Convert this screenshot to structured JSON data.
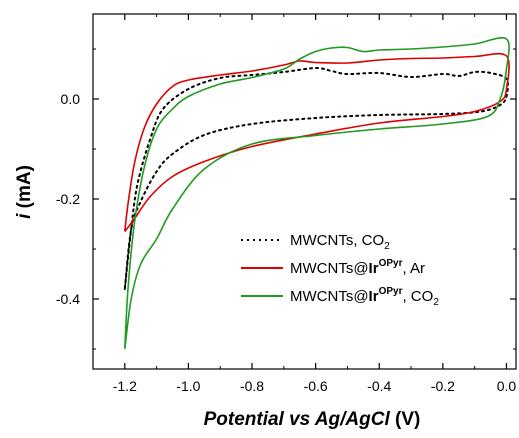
{
  "chart_data": {
    "type": "line",
    "title": "",
    "xlabel": {
      "main": "Potential vs Ag/AgCl",
      "unit": " (V)"
    },
    "ylabel": {
      "symbol": "i",
      "unit": " (mA)"
    },
    "xlim": [
      -1.3,
      0.03
    ],
    "ylim": [
      -0.54,
      0.17
    ],
    "x_ticks": [
      -1.2,
      -1.0,
      -0.8,
      -0.6,
      -0.4,
      -0.2,
      0.0
    ],
    "x_tick_labels": [
      "-1.2",
      "-1.0",
      "-0.8",
      "-0.6",
      "-0.4",
      "-0.2",
      "0.0"
    ],
    "y_ticks": [
      0.0,
      -0.2,
      -0.4
    ],
    "y_tick_labels": [
      "0.0",
      "-0.2",
      "-0.4"
    ],
    "grid": false,
    "legend_position": "lower-right",
    "series": [
      {
        "name": "MWCNTs, CO2",
        "legend": {
          "main": "MWCNTs, CO",
          "sub": "2"
        },
        "color": "#000000",
        "style": "dotted",
        "points": [
          [
            -1.2,
            -0.38
          ],
          [
            -1.18,
            -0.26
          ],
          [
            -1.16,
            -0.17
          ],
          [
            -1.12,
            -0.08
          ],
          [
            -1.08,
            -0.02
          ],
          [
            -1.0,
            0.02
          ],
          [
            -0.9,
            0.042
          ],
          [
            -0.8,
            0.048
          ],
          [
            -0.7,
            0.054
          ],
          [
            -0.6,
            0.062
          ],
          [
            -0.55,
            0.056
          ],
          [
            -0.5,
            0.05
          ],
          [
            -0.4,
            0.052
          ],
          [
            -0.3,
            0.044
          ],
          [
            -0.2,
            0.05
          ],
          [
            -0.15,
            0.046
          ],
          [
            -0.1,
            0.054
          ],
          [
            -0.05,
            0.052
          ],
          [
            0.0,
            0.04
          ],
          [
            0.0,
            0.005
          ],
          [
            -0.02,
            -0.012
          ],
          [
            -0.08,
            -0.025
          ],
          [
            -0.2,
            -0.03
          ],
          [
            -0.4,
            -0.032
          ],
          [
            -0.6,
            -0.038
          ],
          [
            -0.8,
            -0.05
          ],
          [
            -0.95,
            -0.072
          ],
          [
            -1.05,
            -0.11
          ],
          [
            -1.1,
            -0.145
          ],
          [
            -1.15,
            -0.205
          ],
          [
            -1.18,
            -0.26
          ],
          [
            -1.2,
            -0.38
          ]
        ]
      },
      {
        "name": "MWCNTs@IrOPyr, Ar",
        "legend": {
          "main": "MWCNTs@",
          "bold": "Ir",
          "sup": "OPyr",
          "tail": ", Ar"
        },
        "color": "#dd0000",
        "style": "solid",
        "points": [
          [
            -1.2,
            -0.265
          ],
          [
            -1.19,
            -0.21
          ],
          [
            -1.17,
            -0.13
          ],
          [
            -1.14,
            -0.06
          ],
          [
            -1.1,
            -0.01
          ],
          [
            -1.05,
            0.025
          ],
          [
            -1.0,
            0.038
          ],
          [
            -0.9,
            0.048
          ],
          [
            -0.8,
            0.056
          ],
          [
            -0.7,
            0.068
          ],
          [
            -0.65,
            0.076
          ],
          [
            -0.6,
            0.073
          ],
          [
            -0.5,
            0.072
          ],
          [
            -0.4,
            0.078
          ],
          [
            -0.3,
            0.081
          ],
          [
            -0.2,
            0.082
          ],
          [
            -0.1,
            0.085
          ],
          [
            0.0,
            0.086
          ],
          [
            0.0,
            0.02
          ],
          [
            -0.02,
            -0.005
          ],
          [
            -0.1,
            -0.025
          ],
          [
            -0.2,
            -0.035
          ],
          [
            -0.4,
            -0.048
          ],
          [
            -0.6,
            -0.07
          ],
          [
            -0.8,
            -0.095
          ],
          [
            -0.95,
            -0.125
          ],
          [
            -1.05,
            -0.155
          ],
          [
            -1.12,
            -0.195
          ],
          [
            -1.17,
            -0.24
          ],
          [
            -1.2,
            -0.265
          ]
        ]
      },
      {
        "name": "MWCNTs@IrOPyr, CO2",
        "legend": {
          "main": "MWCNTs@",
          "bold": "Ir",
          "sup": "OPyr",
          "tail": ", CO",
          "sub": "2"
        },
        "color": "#229922",
        "style": "solid",
        "points": [
          [
            -1.2,
            -0.5
          ],
          [
            -1.19,
            -0.38
          ],
          [
            -1.17,
            -0.25
          ],
          [
            -1.14,
            -0.14
          ],
          [
            -1.1,
            -0.06
          ],
          [
            -1.05,
            -0.02
          ],
          [
            -1.0,
            0.005
          ],
          [
            -0.9,
            0.03
          ],
          [
            -0.8,
            0.043
          ],
          [
            -0.7,
            0.06
          ],
          [
            -0.65,
            0.08
          ],
          [
            -0.6,
            0.095
          ],
          [
            -0.55,
            0.102
          ],
          [
            -0.5,
            0.103
          ],
          [
            -0.45,
            0.095
          ],
          [
            -0.4,
            0.098
          ],
          [
            -0.3,
            0.1
          ],
          [
            -0.2,
            0.104
          ],
          [
            -0.1,
            0.11
          ],
          [
            0.0,
            0.12
          ],
          [
            0.0,
            0.06
          ],
          [
            -0.02,
            0.0
          ],
          [
            -0.06,
            -0.035
          ],
          [
            -0.2,
            -0.05
          ],
          [
            -0.4,
            -0.06
          ],
          [
            -0.6,
            -0.073
          ],
          [
            -0.8,
            -0.09
          ],
          [
            -0.95,
            -0.14
          ],
          [
            -1.05,
            -0.22
          ],
          [
            -1.1,
            -0.28
          ],
          [
            -1.15,
            -0.33
          ],
          [
            -1.18,
            -0.4
          ],
          [
            -1.2,
            -0.5
          ]
        ]
      }
    ]
  }
}
